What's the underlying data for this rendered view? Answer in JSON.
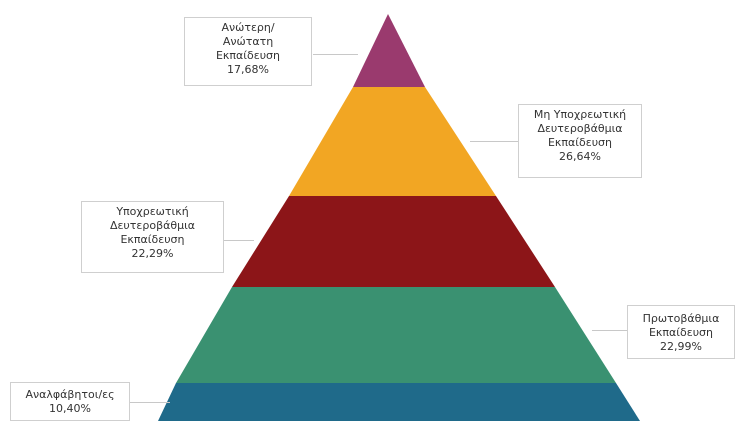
{
  "colors": {
    "higher": "#9a3a6e",
    "noncompulsory": "#f2a623",
    "compulsory": "#8c1518",
    "primary": "#3a9171",
    "illiterate": "#1f6a8a"
  },
  "levels": [
    {
      "id": "higher",
      "lines": [
        "Ανώτερη/",
        "Ανώτατη",
        "Εκπαίδευση"
      ],
      "value_text": "17,68%"
    },
    {
      "id": "noncompulsory",
      "lines": [
        "Μη Υποχρεωτική",
        "Δευτεροβάθμια",
        "Εκπαίδευση"
      ],
      "value_text": "26,64%"
    },
    {
      "id": "compulsory",
      "lines": [
        "Υποχρεωτική",
        "Δευτεροβάθμια",
        "Εκπαίδευση"
      ],
      "value_text": "22,29%"
    },
    {
      "id": "primary",
      "lines": [
        "Πρωτοβάθμια",
        "Εκπαίδευση"
      ],
      "value_text": "22,99%"
    },
    {
      "id": "illiterate",
      "lines": [
        "Αναλφάβητοι/ες"
      ],
      "value_text": "10,40%"
    }
  ]
}
